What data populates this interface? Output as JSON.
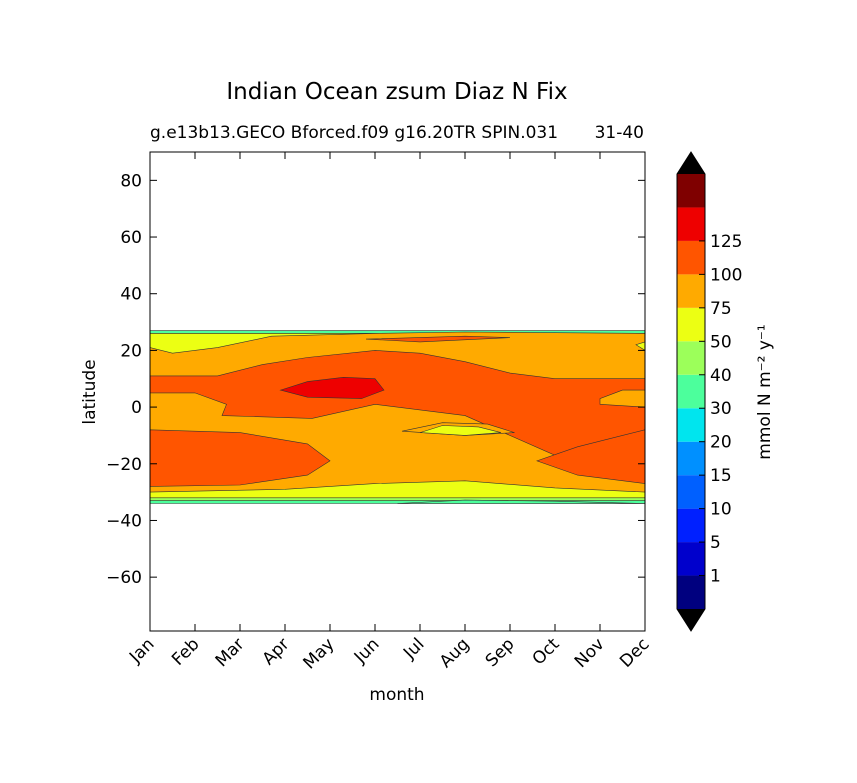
{
  "chart_data": {
    "type": "heatmap",
    "title": "Indian Ocean zsum Diaz N Fix",
    "subtitle_left": "g.e13b13.GECO Bforced.f09 g16.20TR SPIN.031",
    "subtitle_right": "31-40",
    "xlabel": "month",
    "ylabel": "latitude",
    "x_tick_labels": [
      "Jan",
      "Feb",
      "Mar",
      "Apr",
      "May",
      "Jun",
      "Jul",
      "Aug",
      "Sep",
      "Oct",
      "Nov",
      "Dec"
    ],
    "y_ticks": [
      80,
      60,
      40,
      20,
      0,
      -20,
      -40,
      -60
    ],
    "y_tick_labels": [
      "80",
      "60",
      "40",
      "20",
      "0",
      "−20",
      "−40",
      "−60"
    ],
    "xlim": [
      0,
      11
    ],
    "ylim": [
      -79,
      90
    ],
    "colorbar": {
      "label": "mmol N m⁻² y⁻¹",
      "levels": [
        1,
        5,
        10,
        15,
        20,
        30,
        40,
        50,
        75,
        100,
        125
      ],
      "tick_labels": [
        "1",
        "5",
        "10",
        "15",
        "20",
        "30",
        "40",
        "50",
        "75",
        "100",
        "125"
      ],
      "colors": [
        "#00007f",
        "#0000cc",
        "#0020ff",
        "#0060ff",
        "#0090ff",
        "#00e5ee",
        "#4cff9c",
        "#9cff5a",
        "#ecff13",
        "#ffaa00",
        "#ff5500",
        "#ee0000",
        "#7f0000"
      ],
      "extend": "both",
      "under_color": "#000000",
      "over_color": "#000000"
    },
    "contour_regions": [
      {
        "level": "20-30",
        "color": "#4cff9c",
        "polygon": [
          [
            0,
            27
          ],
          [
            11,
            27
          ],
          [
            11,
            -34
          ],
          [
            0,
            -34
          ]
        ]
      },
      {
        "level": "30-40",
        "color": "#9cff5a",
        "polygon": [
          [
            0,
            26
          ],
          [
            11,
            26
          ],
          [
            11,
            -33
          ],
          [
            0,
            -33
          ]
        ]
      },
      {
        "level": "40-50",
        "color": "#ecff13",
        "polygon": [
          [
            0,
            26
          ],
          [
            11,
            26
          ],
          [
            11,
            -32
          ],
          [
            0,
            -32
          ]
        ]
      },
      {
        "level": "50-75",
        "color": "#ffaa00",
        "polygon": [
          [
            0,
            21
          ],
          [
            0.5,
            19
          ],
          [
            1.5,
            21
          ],
          [
            2.7,
            25
          ],
          [
            5,
            26
          ],
          [
            7,
            26.5
          ],
          [
            11,
            26
          ],
          [
            11,
            23
          ],
          [
            10.8,
            22
          ],
          [
            11,
            20
          ],
          [
            11,
            -30
          ],
          [
            9,
            -28.5
          ],
          [
            7,
            -26
          ],
          [
            5,
            -27
          ],
          [
            3,
            -29
          ],
          [
            0,
            -30
          ]
        ]
      },
      {
        "level": "75-100",
        "color": "#ff5500",
        "polygon": [
          [
            0,
            11
          ],
          [
            1.5,
            11
          ],
          [
            2.5,
            15
          ],
          [
            3.5,
            17.5
          ],
          [
            5,
            20
          ],
          [
            6,
            19
          ],
          [
            7,
            16
          ],
          [
            8,
            12
          ],
          [
            9,
            10
          ],
          [
            10,
            10
          ],
          [
            11,
            10
          ],
          [
            11,
            6
          ],
          [
            10.5,
            6
          ],
          [
            10,
            3
          ],
          [
            10,
            1
          ],
          [
            11,
            0
          ],
          [
            11,
            -8
          ],
          [
            9,
            -17
          ],
          [
            7,
            -3
          ],
          [
            5,
            1
          ],
          [
            3.6,
            -4
          ],
          [
            1.6,
            -3
          ],
          [
            1.7,
            1
          ],
          [
            1,
            5
          ],
          [
            0,
            5
          ]
        ]
      },
      {
        "level": "75-100",
        "color": "#ff5500",
        "polygon": [
          [
            0,
            -8
          ],
          [
            2,
            -9
          ],
          [
            3.5,
            -13
          ],
          [
            4,
            -19
          ],
          [
            3.5,
            -24
          ],
          [
            2,
            -27.5
          ],
          [
            0,
            -28
          ]
        ]
      },
      {
        "level": "75-100",
        "color": "#ff5500",
        "polygon": [
          [
            11,
            -8
          ],
          [
            10.5,
            -10
          ],
          [
            9.5,
            -14
          ],
          [
            8.6,
            -19
          ],
          [
            9.5,
            -24
          ],
          [
            11,
            -27
          ]
        ]
      },
      {
        "level": "75-100",
        "color": "#ff5500",
        "polygon": [
          [
            4.8,
            24
          ],
          [
            7,
            25
          ],
          [
            8,
            24.5
          ],
          [
            6,
            23
          ]
        ]
      },
      {
        "level": "100-125",
        "color": "#ee0000",
        "polygon": [
          [
            2.9,
            6
          ],
          [
            3.5,
            9
          ],
          [
            4.3,
            10.5
          ],
          [
            5,
            10
          ],
          [
            5.2,
            6
          ],
          [
            4.7,
            3
          ],
          [
            3.5,
            3.5
          ]
        ]
      },
      {
        "level": "50-75",
        "color": "#ffaa00",
        "polygon": [
          [
            5.6,
            -8.5
          ],
          [
            6.5,
            -5.5
          ],
          [
            7.5,
            -6
          ],
          [
            8.1,
            -9
          ],
          [
            7,
            -10
          ]
        ]
      },
      {
        "level": "40-50",
        "color": "#ecff13",
        "polygon": [
          [
            6,
            -9
          ],
          [
            6.5,
            -6.5
          ],
          [
            7.3,
            -7
          ],
          [
            7.8,
            -9
          ],
          [
            7,
            -10
          ]
        ]
      },
      {
        "level": "20-30",
        "color": "#4cff9c",
        "polygon": [
          [
            5.5,
            -34
          ],
          [
            7,
            -32.8
          ],
          [
            9,
            -33.2
          ],
          [
            11,
            -34
          ]
        ]
      }
    ]
  }
}
